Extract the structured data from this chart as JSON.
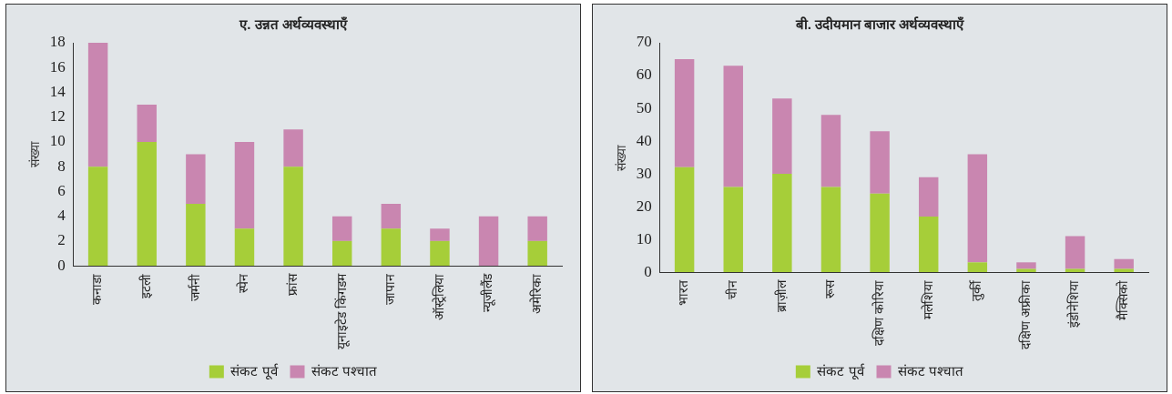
{
  "chart_data": [
    {
      "type": "bar",
      "title": "ए. उन्नत अर्थव्यवस्थाएँ",
      "ylabel": "संख्या",
      "stacked": true,
      "legend": "bottom",
      "grid": false,
      "categories": [
        "कनाडा",
        "इटली",
        "जर्मनी",
        "स्पेन",
        "फ्रांस",
        "यूनाइटेड किंगडम",
        "जापान",
        "ऑस्ट्रेलिया",
        "न्यूजीलैंड",
        "अमेरिका"
      ],
      "ylim": [
        0,
        18
      ],
      "yticks": [
        0,
        2,
        4,
        6,
        8,
        10,
        12,
        14,
        16,
        18
      ],
      "series": [
        {
          "name": "संकट पूर्व",
          "color": "#a6ce39",
          "values": [
            8,
            10,
            5,
            3,
            8,
            2,
            3,
            2,
            0,
            2
          ]
        },
        {
          "name": "संकट पश्चात",
          "color": "#c986b0",
          "values": [
            10,
            3,
            4,
            7,
            3,
            2,
            2,
            1,
            4,
            2
          ]
        }
      ]
    },
    {
      "type": "bar",
      "title": "बी. उदीयमान बाजार अर्थव्यवस्थाएँ",
      "ylabel": "संख्या",
      "stacked": true,
      "legend": "bottom",
      "grid": false,
      "categories": [
        "भारत",
        "चीन",
        "ब्राज़ील",
        "रूस",
        "दक्षिण कोरिया",
        "मलेशिया",
        "तुर्की",
        "दक्षिण अफ्रीका",
        "इंडोनेशिया",
        "मैक्सिको"
      ],
      "ylim": [
        0,
        70
      ],
      "yticks": [
        0,
        10,
        20,
        30,
        40,
        50,
        60,
        70
      ],
      "series": [
        {
          "name": "संकट पूर्व",
          "color": "#a6ce39",
          "values": [
            32,
            26,
            30,
            26,
            24,
            17,
            3,
            1,
            1,
            1
          ]
        },
        {
          "name": "संकट पश्चात",
          "color": "#c986b0",
          "values": [
            33,
            37,
            23,
            22,
            19,
            12,
            33,
            2,
            10,
            3
          ]
        }
      ]
    }
  ]
}
